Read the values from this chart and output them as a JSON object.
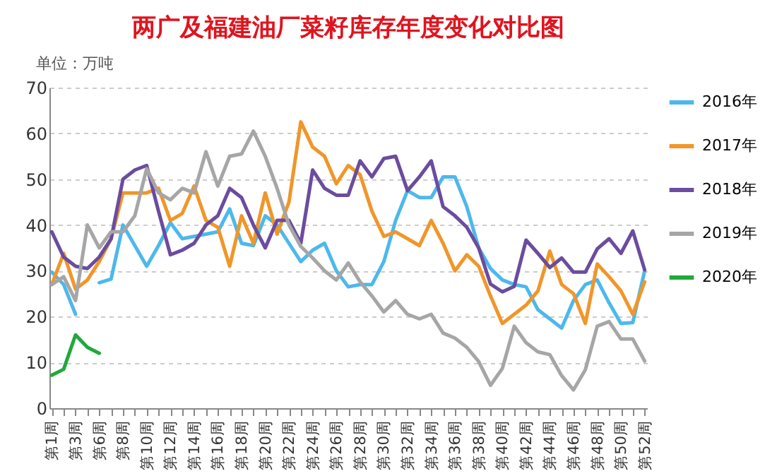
{
  "chart_data": {
    "type": "line",
    "title": "两广及福建油厂菜籽库存年度变化对比图",
    "ylabel": "单位：万吨",
    "categories": [
      "第1周",
      null,
      "第3周",
      null,
      "第6周",
      null,
      "第8周",
      null,
      "第10周",
      null,
      "第12周",
      null,
      "第14周",
      null,
      "第16周",
      null,
      "第18周",
      null,
      "第20周",
      null,
      "第22周",
      null,
      "第24周",
      null,
      "第26周",
      null,
      "第28周",
      null,
      "第30周",
      null,
      "第32周",
      null,
      "第34周",
      null,
      "第36周",
      null,
      "第38周",
      null,
      "第40周",
      null,
      "第42周",
      null,
      "第44周",
      null,
      "第46周",
      null,
      "第48周",
      null,
      "第50周",
      null,
      "第52周"
    ],
    "series": [
      {
        "name": "2016年",
        "color": "#4db8ec",
        "values": [
          29.7,
          27,
          20.5,
          null,
          27.4,
          28.2,
          40,
          35.5,
          31,
          35.5,
          40.5,
          37,
          37.5,
          38,
          38.5,
          43.5,
          36,
          35.5,
          42,
          40,
          36,
          32,
          34.5,
          36,
          30,
          26.5,
          27,
          27,
          32,
          41,
          47.5,
          46,
          46,
          50.5,
          50.5,
          44,
          35,
          30.5,
          28,
          27,
          26.5,
          21.5,
          19.5,
          17.5,
          23.5,
          27,
          28,
          23,
          18.5,
          18.7,
          30
        ]
      },
      {
        "name": "2017年",
        "color": "#f0962a",
        "values": [
          27,
          33.8,
          26,
          28,
          32,
          37,
          47,
          47,
          47,
          48,
          41,
          42.5,
          48.5,
          41,
          39.5,
          31,
          42,
          36,
          47,
          38,
          45,
          62.5,
          57,
          55,
          49,
          53,
          51,
          43,
          37.5,
          38.5,
          37,
          35.5,
          41,
          36,
          30,
          33.5,
          31,
          24.5,
          18.5,
          20.5,
          22.5,
          25.6,
          34.3,
          27,
          25,
          18.5,
          31.5,
          28.7,
          25.6,
          20.5,
          27.6
        ]
      },
      {
        "name": "2018年",
        "color": "#6b4c9e",
        "values": [
          38.5,
          33,
          31,
          30.5,
          33,
          37,
          50,
          52,
          53,
          43,
          33.5,
          34.5,
          36,
          40,
          42,
          48,
          46,
          40,
          35,
          41,
          41,
          36,
          52,
          48,
          46.5,
          46.5,
          54,
          50.5,
          54.5,
          55,
          47.5,
          50.5,
          54,
          44,
          42,
          39.5,
          35,
          27.1,
          25.4,
          26.6,
          36.7,
          33.8,
          30.7,
          32.8,
          29.7,
          29.7,
          34.8,
          37,
          33.8,
          38.7,
          30.2
        ]
      },
      {
        "name": "2019年",
        "color": "#a6a6a6",
        "values": [
          27,
          28.7,
          23.5,
          40,
          35,
          38.5,
          38.5,
          42,
          52.3,
          47,
          45.5,
          48,
          47,
          56,
          48.5,
          55,
          55.5,
          60.5,
          55,
          48,
          40,
          35.3,
          32.8,
          30,
          28,
          31.7,
          27.6,
          24.5,
          21,
          23.5,
          20.5,
          19.5,
          20.5,
          16.4,
          15.3,
          13.3,
          10.2,
          5,
          8.7,
          17.9,
          14.3,
          12.3,
          11.7,
          7.1,
          4,
          8.4,
          17.9,
          18.9,
          15.1,
          15.1,
          10.3
        ]
      },
      {
        "name": "2020年",
        "color": "#22a83c",
        "values": [
          7.2,
          8.5,
          16,
          13.3,
          12,
          null,
          null,
          null,
          null,
          null,
          null,
          null,
          null,
          null,
          null,
          null,
          null,
          null,
          null,
          null,
          null,
          null,
          null,
          null,
          null,
          null,
          null,
          null,
          null,
          null,
          null,
          null,
          null,
          null,
          null,
          null,
          null,
          null,
          null,
          null,
          null,
          null,
          null,
          null,
          null,
          null,
          null,
          null,
          null,
          null,
          null
        ]
      }
    ],
    "ylim": [
      0,
      70
    ],
    "yticks": [
      0,
      10,
      20,
      30,
      40,
      50,
      60,
      70
    ],
    "grid": "y",
    "legend": "right",
    "marker": "none",
    "line_style": "solid"
  }
}
